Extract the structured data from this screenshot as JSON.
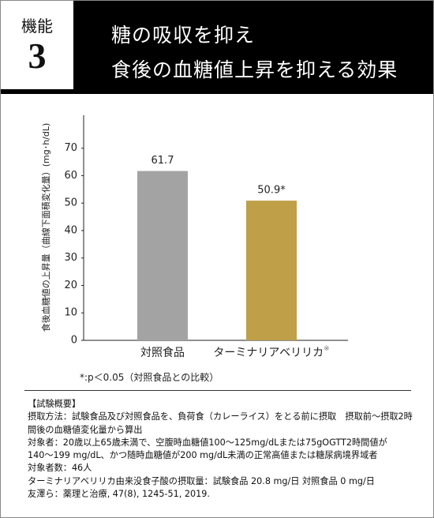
{
  "header": {
    "badge_label": "機能",
    "badge_number": "3",
    "title_lines": [
      "糖の吸収を抑え",
      "食後の血糖値上昇を抑える効果"
    ]
  },
  "chart_data": {
    "type": "bar",
    "y_label": "食後血糖値の上昇量（曲線下面積変化量）(mg･h/dL)",
    "categories": [
      "対照食品",
      "ターミナリアベリリカ"
    ],
    "category_notes": [
      null,
      "※"
    ],
    "values": [
      61.7,
      50.9
    ],
    "value_labels": [
      "61.7",
      "50.9*"
    ],
    "colors": [
      "#a3a3a3",
      "#bf9f48"
    ],
    "ylim": [
      0,
      82
    ],
    "yticks": [
      0,
      10,
      20,
      30,
      40,
      50,
      60,
      70
    ],
    "grid": false
  },
  "footnote": "*:p＜0.05（対照食品との比較）",
  "notes": {
    "heading": "【試験概要】",
    "lines": [
      "摂取方法：試験食品及び対照食品を、負荷食（カレーライス）をとる前に摂取　摂取前～摂取2時",
      "間後の血糖値変化量から算出",
      "対象者：20歳以上65歳未満で、空腹時血糖値100～125mg/dLまたは75gOGTT2時間値が",
      "140～199 mg/dL、かつ随時血糖値が200 mg/dL未満の正常高値または糖尿病境界域者",
      "対象者数：46人",
      "ターミナリアベリリカ由来没食子酸の摂取量：試験食品 20.8 mg/日 対照食品 0 mg/日",
      "友澤ら：薬理と治療, 47(8), 1245-51, 2019."
    ]
  }
}
